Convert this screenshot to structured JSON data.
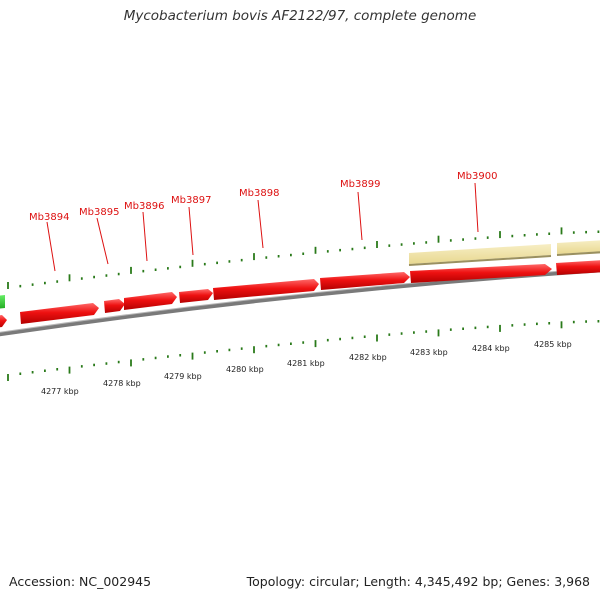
{
  "title": "Mycobacterium bovis AF2122/97, complete genome",
  "footer": {
    "accession": "Accession: NC_002945",
    "summary": "Topology: circular; Length: 4,345,492 bp; Genes: 3,968"
  },
  "genes": [
    "Mb3894",
    "Mb3895",
    "Mb3896",
    "Mb3897",
    "Mb3898",
    "Mb3899",
    "Mb3900"
  ],
  "kbp_ticks": [
    "4277 kbp",
    "4278 kbp",
    "4279 kbp",
    "4280 kbp",
    "4281 kbp",
    "4282 kbp",
    "4283 kbp",
    "4284 kbp",
    "4285 kbp"
  ],
  "colors": {
    "gene_forward": "#ee1111",
    "gene_label": "#dd1111",
    "tick": "#2a7a1a",
    "backbone": "#808080",
    "feature_band": "#f0e4a8",
    "green_feature": "#33cc33"
  }
}
